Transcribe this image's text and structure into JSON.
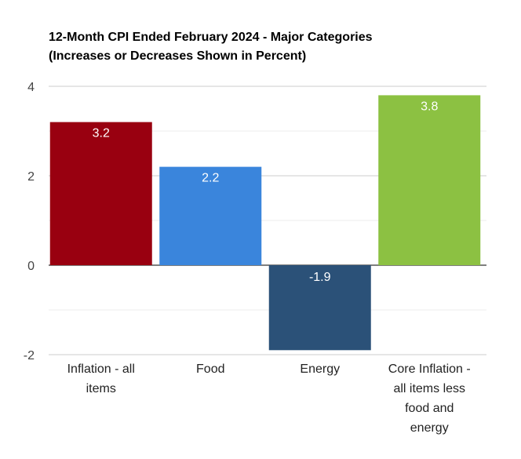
{
  "chart_data": {
    "type": "bar",
    "title": "12-Month CPI Ended February 2024 - Major Categories",
    "subtitle": "(Increases or Decreases Shown in Percent)",
    "categories": [
      "Inflation - all items",
      "Food",
      "Energy",
      "Core Inflation - all items less food and energy"
    ],
    "category_lines": [
      [
        "Inflation - all",
        "items"
      ],
      [
        "Food"
      ],
      [
        "Energy"
      ],
      [
        "Core Inflation -",
        "all items less",
        "food and",
        "energy"
      ]
    ],
    "values": [
      3.2,
      2.2,
      -1.9,
      3.8
    ],
    "value_labels": [
      "3.2",
      "2.2",
      "-1.9",
      "3.8"
    ],
    "colors": [
      "#990010",
      "#3a85dc",
      "#2b5178",
      "#8cc142"
    ],
    "ylim": [
      -2,
      4
    ],
    "yticks": [
      -2,
      0,
      2,
      4
    ],
    "ytick_labels": [
      "-2",
      "0",
      "2",
      "4"
    ],
    "grid": true,
    "legend": "none",
    "xlabel": "",
    "ylabel": ""
  }
}
